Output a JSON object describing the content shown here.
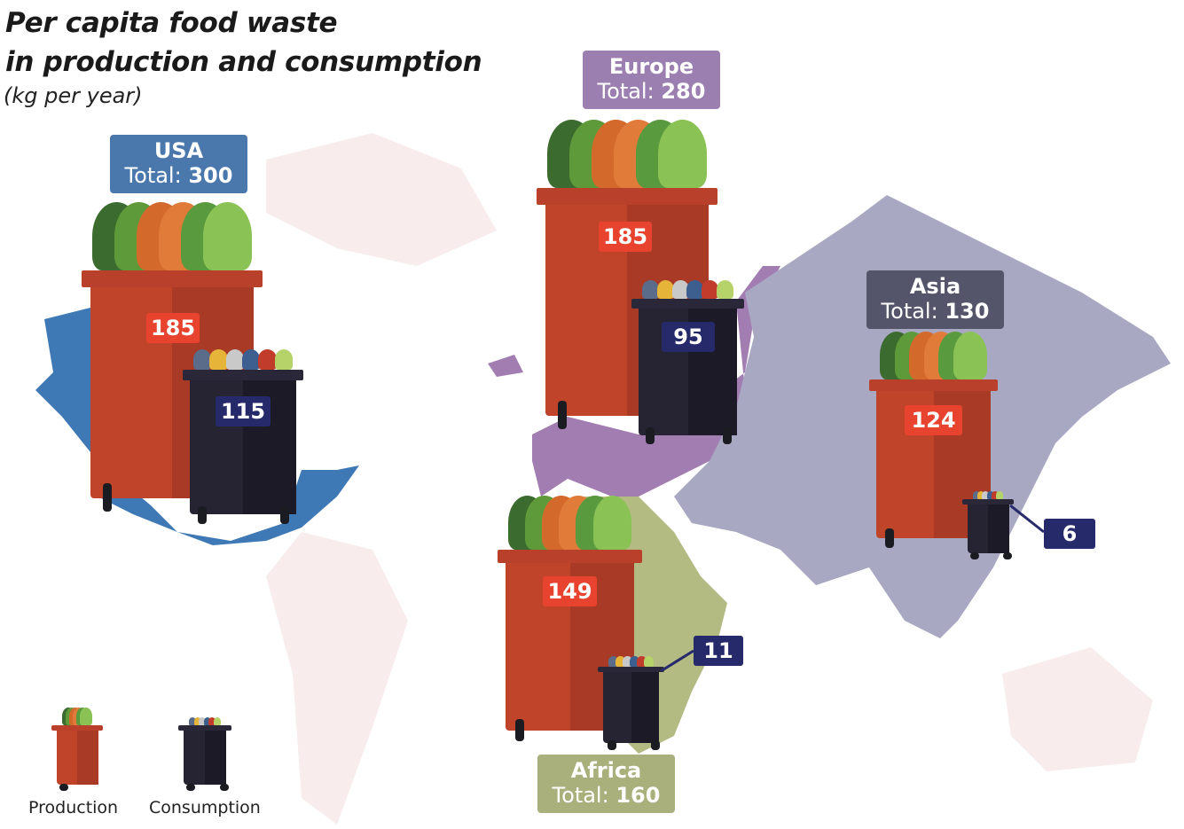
{
  "title_line1": "Per capita food waste",
  "title_line2": "in production and consumption",
  "subtitle": "(kg per year)",
  "colors": {
    "production_bin": "#c0442a",
    "consumption_bin": "#262433",
    "production_label": "#e8432f",
    "consumption_label": "#26296a",
    "usa": "#3e78b5",
    "europe": "#a27db2",
    "asia": "#a9a8c3",
    "africa": "#b3ba82",
    "background_land": "#f8ecec"
  },
  "chart_data": {
    "type": "pictogram-map",
    "title": "Per capita food waste in production and consumption",
    "unit": "(kg per year)",
    "legend": [
      "Production",
      "Consumption"
    ],
    "regions": [
      {
        "name": "USA",
        "total_label": "Total:",
        "total": "300",
        "production": "185",
        "consumption": "115",
        "color": "#4a78ad"
      },
      {
        "name": "Europe",
        "total_label": "Total:",
        "total": "280",
        "production": "185",
        "consumption": "95",
        "color": "#9c7fb1"
      },
      {
        "name": "Asia",
        "total_label": "Total:",
        "total": "130",
        "production": "124",
        "consumption": "6",
        "color": "#54546a"
      },
      {
        "name": "Africa",
        "total_label": "Total:",
        "total": "160",
        "production": "149",
        "consumption": "11",
        "color": "#a9b07c"
      }
    ]
  }
}
